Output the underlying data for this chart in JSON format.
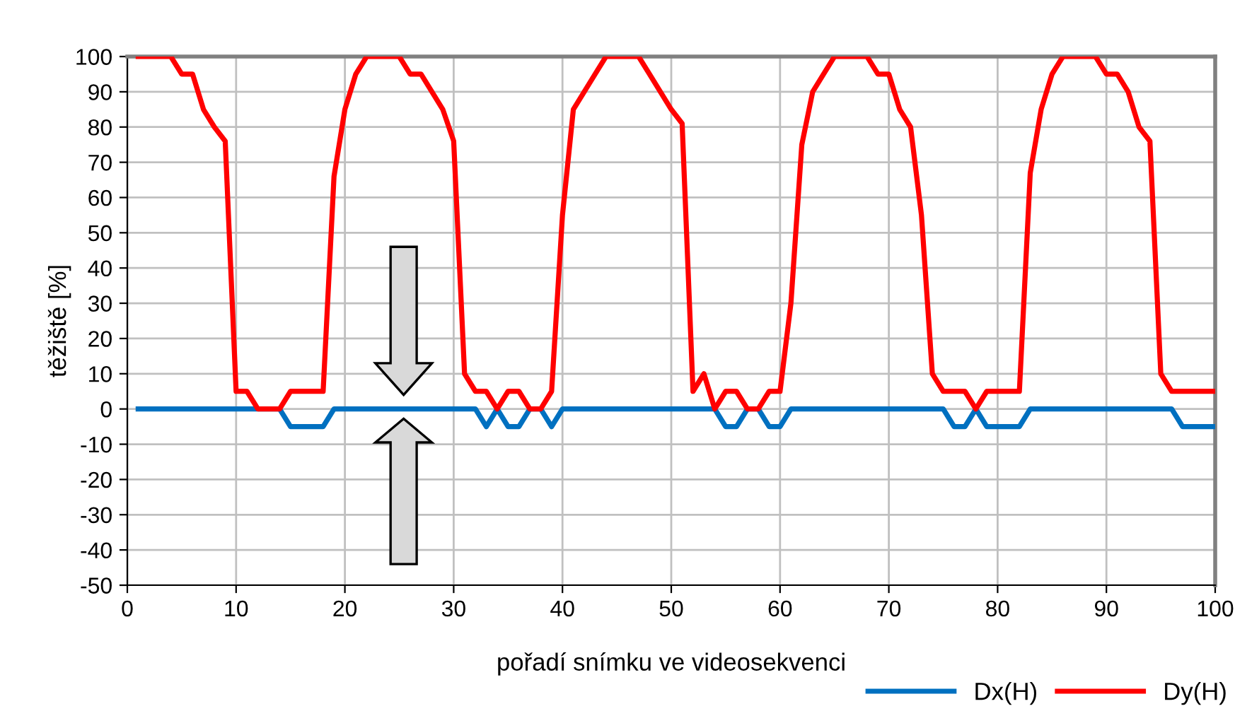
{
  "chart_data": {
    "type": "line",
    "xlabel": "pořadí snímku ve videosekvenci",
    "ylabel": "těžiště [%]",
    "x": [
      1,
      2,
      3,
      4,
      5,
      6,
      7,
      8,
      9,
      10,
      11,
      12,
      13,
      14,
      15,
      16,
      17,
      18,
      19,
      20,
      21,
      22,
      23,
      24,
      25,
      26,
      27,
      28,
      29,
      30,
      31,
      32,
      33,
      34,
      35,
      36,
      37,
      38,
      39,
      40,
      41,
      42,
      43,
      44,
      45,
      46,
      47,
      48,
      49,
      50,
      51,
      52,
      53,
      54,
      55,
      56,
      57,
      58,
      59,
      60,
      61,
      62,
      63,
      64,
      65,
      66,
      67,
      68,
      69,
      70,
      71,
      72,
      73,
      74,
      75,
      76,
      77,
      78,
      79,
      80,
      81,
      82,
      83,
      84,
      85,
      86,
      87,
      88,
      89,
      90,
      91,
      92,
      93,
      94,
      95,
      96,
      97,
      98,
      99,
      100
    ],
    "series": [
      {
        "name": "Dx(H)",
        "color": "#0070c0",
        "values": [
          0,
          0,
          0,
          0,
          0,
          0,
          0,
          0,
          0,
          0,
          0,
          0,
          0,
          0,
          -5,
          -5,
          -5,
          -5,
          0,
          0,
          0,
          0,
          0,
          0,
          0,
          0,
          0,
          0,
          0,
          0,
          0,
          0,
          -5,
          0,
          -5,
          -5,
          0,
          0,
          -5,
          0,
          0,
          0,
          0,
          0,
          0,
          0,
          0,
          0,
          0,
          0,
          0,
          0,
          0,
          0,
          -5,
          -5,
          0,
          0,
          -5,
          -5,
          0,
          0,
          0,
          0,
          0,
          0,
          0,
          0,
          0,
          0,
          0,
          0,
          0,
          0,
          0,
          -5,
          -5,
          0,
          -5,
          -5,
          -5,
          -5,
          0,
          0,
          0,
          0,
          0,
          0,
          0,
          0,
          0,
          0,
          0,
          0,
          0,
          0,
          -5,
          -5,
          -5,
          -5
        ]
      },
      {
        "name": "Dy(H)",
        "color": "#ff0000",
        "values": [
          100,
          100,
          100,
          100,
          95,
          95,
          85,
          80,
          76,
          5,
          5,
          0,
          0,
          0,
          5,
          5,
          5,
          5,
          66,
          85,
          95,
          100,
          100,
          100,
          100,
          95,
          95,
          90,
          85,
          76,
          10,
          5,
          5,
          0,
          5,
          5,
          0,
          0,
          5,
          55,
          85,
          90,
          95,
          100,
          100,
          100,
          100,
          95,
          90,
          85,
          81,
          5,
          10,
          0,
          5,
          5,
          0,
          0,
          5,
          5,
          30,
          75,
          90,
          95,
          100,
          100,
          100,
          100,
          95,
          95,
          85,
          80,
          55,
          10,
          5,
          5,
          5,
          0,
          5,
          5,
          5,
          5,
          67,
          85,
          95,
          100,
          100,
          100,
          100,
          95,
          95,
          90,
          80,
          76,
          10,
          5,
          5,
          5,
          5,
          5
        ]
      }
    ],
    "xlim": [
      0,
      100
    ],
    "xticks": [
      0,
      10,
      20,
      30,
      40,
      50,
      60,
      70,
      80,
      90,
      100
    ],
    "ylim": [
      -50,
      100
    ],
    "yticks": [
      -50,
      -40,
      -30,
      -20,
      -10,
      0,
      10,
      20,
      30,
      40,
      50,
      60,
      70,
      80,
      90,
      100
    ],
    "grid": true,
    "legend": "bottom right",
    "marker": "none",
    "line_style": "solid"
  }
}
